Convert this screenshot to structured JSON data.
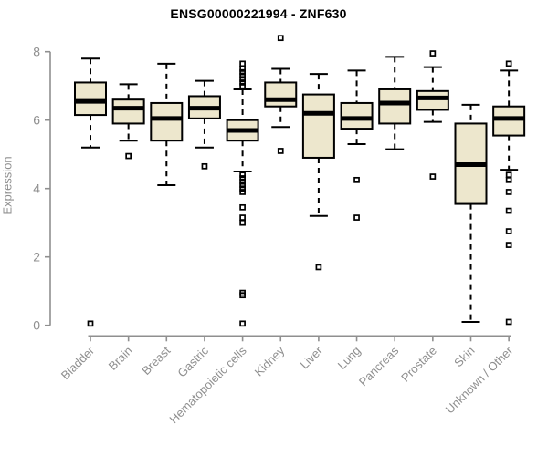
{
  "title": "ENSG00000221994 - ZNF630",
  "chart_data": {
    "type": "boxplot",
    "title": "ENSG00000221994 - ZNF630",
    "xlabel": "",
    "ylabel": "Expression",
    "ylim": [
      0,
      8.45
    ],
    "yticks": [
      "0",
      "2",
      "4",
      "6",
      "8"
    ],
    "ytick_values": [
      0,
      2,
      4,
      6,
      8
    ],
    "grid": false,
    "legend": "none",
    "box_fill_color": "#EDE7CD",
    "box_line_color": "#000000",
    "axis_color": "#8f8f8f",
    "categories": [
      "Bladder",
      "Brain",
      "Breast",
      "Gastric",
      "Hematopoietic cells",
      "Kidney",
      "Liver",
      "Lung",
      "Pancreas",
      "Prostate",
      "Skin",
      "Unknown / Other"
    ],
    "series": [
      {
        "name": "Bladder",
        "whisker_low": 5.2,
        "q1": 6.15,
        "median": 6.55,
        "q3": 7.1,
        "whisker_high": 7.8,
        "outliers": [
          0.05
        ]
      },
      {
        "name": "Brain",
        "whisker_low": 5.4,
        "q1": 5.9,
        "median": 6.35,
        "q3": 6.6,
        "whisker_high": 7.05,
        "outliers": [
          4.95
        ]
      },
      {
        "name": "Breast",
        "whisker_low": 4.1,
        "q1": 5.4,
        "median": 6.05,
        "q3": 6.5,
        "whisker_high": 7.65,
        "outliers": []
      },
      {
        "name": "Gastric",
        "whisker_low": 5.2,
        "q1": 6.05,
        "median": 6.35,
        "q3": 6.7,
        "whisker_high": 7.15,
        "outliers": [
          4.65
        ]
      },
      {
        "name": "Hematopoietic cells",
        "whisker_low": 4.5,
        "q1": 5.4,
        "median": 5.7,
        "q3": 6.0,
        "whisker_high": 6.9,
        "outliers": [
          7.65,
          7.5,
          7.4,
          7.3,
          7.2,
          7.1,
          7.0,
          4.4,
          4.3,
          4.2,
          4.1,
          4.0,
          3.9,
          3.45,
          3.15,
          3.0,
          0.95,
          0.88,
          0.05
        ]
      },
      {
        "name": "Kidney",
        "whisker_low": 5.8,
        "q1": 6.4,
        "median": 6.6,
        "q3": 7.1,
        "whisker_high": 7.5,
        "outliers": [
          8.4,
          5.1
        ]
      },
      {
        "name": "Liver",
        "whisker_low": 3.2,
        "q1": 4.9,
        "median": 6.2,
        "q3": 6.75,
        "whisker_high": 7.35,
        "outliers": [
          1.7
        ]
      },
      {
        "name": "Lung",
        "whisker_low": 5.3,
        "q1": 5.75,
        "median": 6.05,
        "q3": 6.5,
        "whisker_high": 7.45,
        "outliers": [
          4.25,
          3.15
        ]
      },
      {
        "name": "Pancreas",
        "whisker_low": 5.15,
        "q1": 5.9,
        "median": 6.5,
        "q3": 6.9,
        "whisker_high": 7.85,
        "outliers": []
      },
      {
        "name": "Prostate",
        "whisker_low": 5.95,
        "q1": 6.3,
        "median": 6.65,
        "q3": 6.85,
        "whisker_high": 7.55,
        "outliers": [
          7.95,
          4.35
        ]
      },
      {
        "name": "Skin",
        "whisker_low": 0.1,
        "q1": 3.55,
        "median": 4.7,
        "q3": 5.9,
        "whisker_high": 6.45,
        "outliers": []
      },
      {
        "name": "Unknown / Other",
        "whisker_low": 4.55,
        "q1": 5.55,
        "median": 6.05,
        "q3": 6.4,
        "whisker_high": 7.45,
        "outliers": [
          7.65,
          4.4,
          4.25,
          3.9,
          3.35,
          2.75,
          2.35,
          0.1
        ]
      }
    ]
  }
}
